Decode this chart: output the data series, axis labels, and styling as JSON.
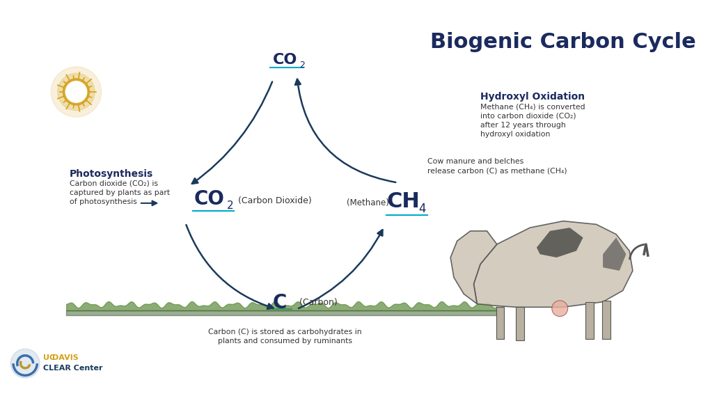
{
  "title": "Biogenic Carbon Cycle",
  "title_color": "#1a2a5e",
  "title_fontsize": 22,
  "title_fontweight": "bold",
  "bg_color": "#ffffff",
  "arrow_color": "#1a3a5c",
  "cycle_arrow_color": "#1a3a5c",
  "label_color": "#1a2a5e",
  "body_color": "#333333",
  "highlight_color": "#00aacc",
  "photosynthesis_label": "Photosynthesis",
  "photosynthesis_desc": "Carbon dioxide (CO₂) is\ncaptured by plants as part\nof photosynthesis",
  "hydroxyl_label": "Hydroxyl Oxidation",
  "hydroxyl_desc": "Methane (CH₄) is converted\ninto carbon dioxide (CO₂)\nafter 12 years through\nhydroxyl oxidation",
  "manure_desc": "Cow manure and belches\nrelease carbon (C) as methane (CH₄)",
  "carbon_label": "C (Carbon)",
  "carbon_desc": "Carbon (C) is stored as carbohydrates in\nplants and consumed by ruminants",
  "co2_center_label": "CO₂",
  "co2_center_sublabel": "(Carbon Dioxide)",
  "ch4_label": "CH₄",
  "ch4_sublabel": "(Methane)",
  "co2_top_label": "CO₂",
  "sun_color": "#d4a017",
  "sun_rays_color": "#d4a017",
  "grass_color": "#4a7a3a",
  "ucdavis_color": "#d4a017",
  "clear_color": "#1a3a5c"
}
